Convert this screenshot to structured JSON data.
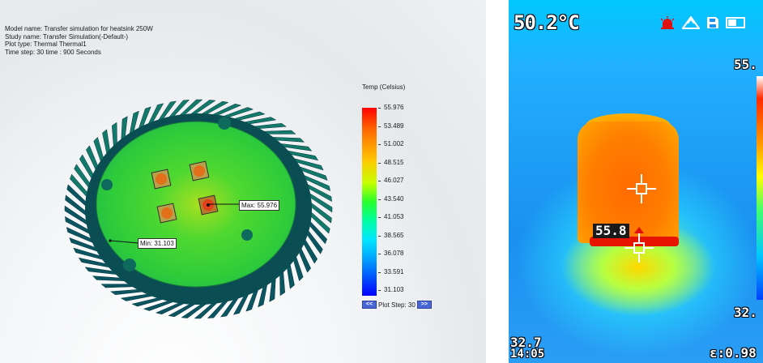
{
  "simulation": {
    "info": {
      "model": "Model name: Transfer simulation for heatsink 250W",
      "study": "Study name: Transfer Simulation(-Default-)",
      "plot_type": "Plot type: Thermal Thermal1",
      "time_step": "Time step: 30   time : 900 Seconds"
    },
    "legend": {
      "title": "Temp (Celsius)",
      "labels": [
        "55.976",
        "53.489",
        "51.002",
        "48.515",
        "46.027",
        "43.540",
        "41.053",
        "38.565",
        "36.078",
        "33.591",
        "31.103"
      ],
      "colors": {
        "hot": "#ff0000",
        "mid": "#27ff2b",
        "cold": "#0000ff"
      }
    },
    "plot_step": {
      "prev_icon": "double-chevron-left-icon",
      "prev_label": "<<",
      "text": "Plot Step: 30",
      "next_icon": "double-chevron-right-icon",
      "next_label": ">>"
    },
    "callouts": {
      "max": "Max: 55.976",
      "min": "Min: 31.103"
    }
  },
  "thermal_camera": {
    "center_temp": "50.2°C",
    "max_value": "55.",
    "min_value": "32.",
    "spot_label": "55.8",
    "bottom_left": "32.7",
    "bottom_left_sub": "14:05",
    "emissivity": "ε:0.98",
    "icons": [
      "alarm-siren-icon",
      "mountain-icon",
      "sd-card-icon",
      "battery-icon"
    ],
    "colors": {
      "hot": "#ff6b00",
      "band": "#e61400",
      "background": "#1a90f0"
    }
  }
}
